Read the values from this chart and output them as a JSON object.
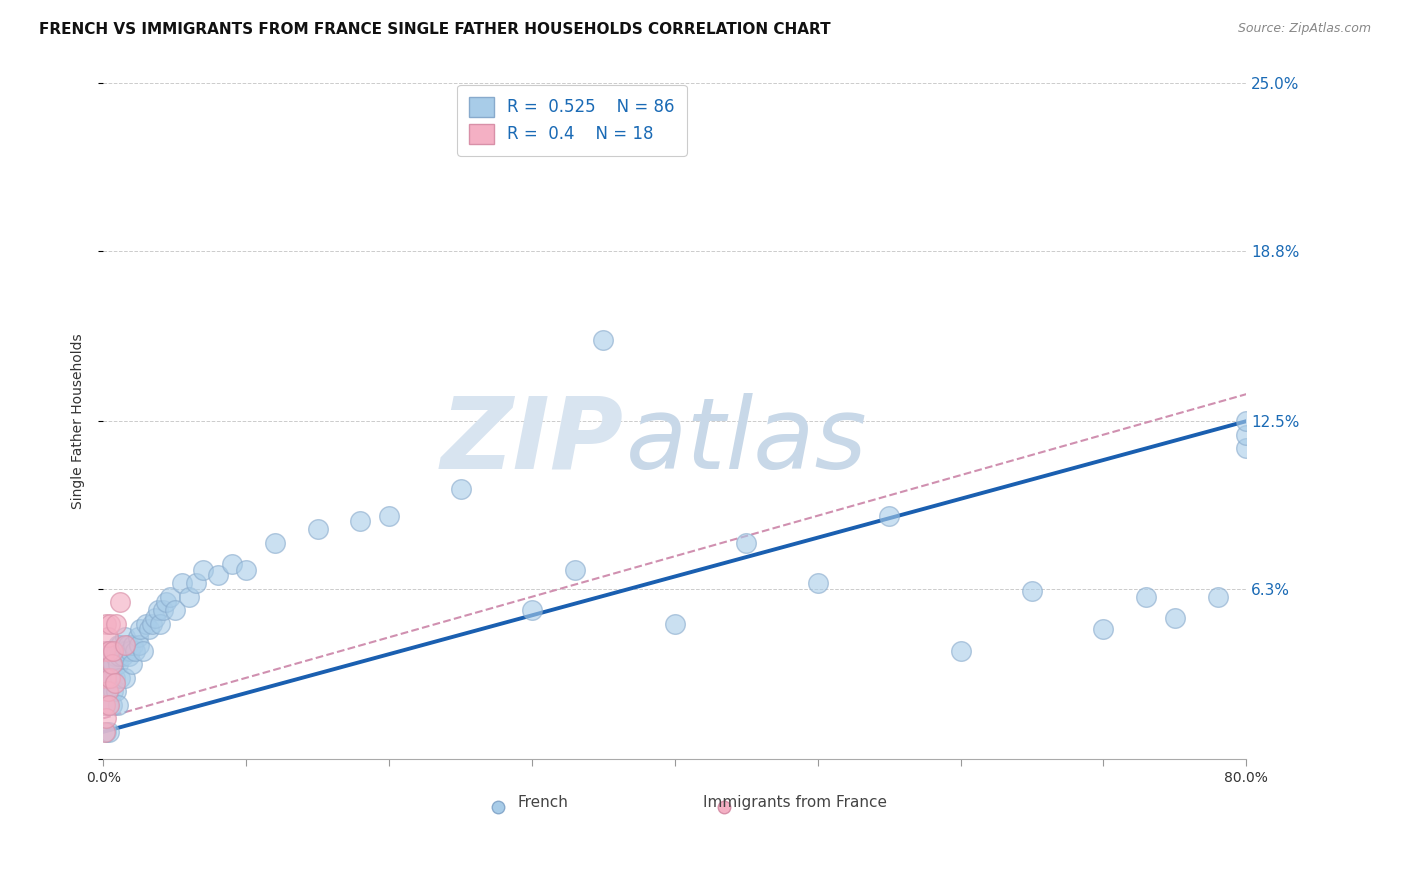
{
  "title": "FRENCH VS IMMIGRANTS FROM FRANCE SINGLE FATHER HOUSEHOLDS CORRELATION CHART",
  "source": "Source: ZipAtlas.com",
  "ylabel": "Single Father Households",
  "xlim": [
    0.0,
    0.8
  ],
  "ylim": [
    0.0,
    0.25
  ],
  "ytick_positions": [
    0.0,
    0.063,
    0.125,
    0.188,
    0.25
  ],
  "ytick_labels": [
    "",
    "6.3%",
    "12.5%",
    "18.8%",
    "25.0%"
  ],
  "xtick_positions": [
    0.0,
    0.1,
    0.2,
    0.3,
    0.4,
    0.5,
    0.6,
    0.7,
    0.8
  ],
  "xtick_labels": [
    "0.0%",
    "",
    "",
    "",
    "",
    "",
    "",
    "",
    "80.0%"
  ],
  "blue_fill": "#a8cce8",
  "blue_edge": "#88aacc",
  "pink_fill": "#f4b0c4",
  "pink_edge": "#d890a8",
  "blue_line": "#1a5fb0",
  "pink_line": "#d090b0",
  "axis_label_color": "#1a6ab5",
  "watermark_zip_color": "#d8e4f0",
  "watermark_atlas_color": "#c8d8e8",
  "grid_color": "#cccccc",
  "R_blue": 0.525,
  "N_blue": 86,
  "R_pink": 0.4,
  "N_pink": 18,
  "title_fontsize": 11,
  "label_fontsize": 10,
  "tick_fontsize": 10,
  "legend_fontsize": 12,
  "source_fontsize": 9,
  "blue_x": [
    0.001,
    0.001,
    0.002,
    0.002,
    0.002,
    0.002,
    0.003,
    0.003,
    0.003,
    0.003,
    0.004,
    0.004,
    0.004,
    0.004,
    0.005,
    0.005,
    0.005,
    0.006,
    0.006,
    0.006,
    0.007,
    0.007,
    0.007,
    0.008,
    0.008,
    0.009,
    0.009,
    0.01,
    0.01,
    0.01,
    0.011,
    0.012,
    0.012,
    0.013,
    0.014,
    0.015,
    0.015,
    0.016,
    0.017,
    0.018,
    0.019,
    0.02,
    0.021,
    0.022,
    0.024,
    0.025,
    0.026,
    0.028,
    0.03,
    0.032,
    0.034,
    0.036,
    0.038,
    0.04,
    0.042,
    0.044,
    0.047,
    0.05,
    0.055,
    0.06,
    0.065,
    0.07,
    0.08,
    0.09,
    0.1,
    0.12,
    0.15,
    0.18,
    0.2,
    0.25,
    0.3,
    0.33,
    0.35,
    0.4,
    0.45,
    0.5,
    0.55,
    0.6,
    0.65,
    0.7,
    0.73,
    0.75,
    0.78,
    0.8,
    0.8,
    0.8
  ],
  "blue_y": [
    0.02,
    0.03,
    0.01,
    0.025,
    0.035,
    0.04,
    0.02,
    0.03,
    0.035,
    0.04,
    0.01,
    0.025,
    0.035,
    0.04,
    0.03,
    0.035,
    0.04,
    0.02,
    0.03,
    0.04,
    0.025,
    0.035,
    0.04,
    0.03,
    0.038,
    0.025,
    0.04,
    0.02,
    0.035,
    0.042,
    0.038,
    0.03,
    0.042,
    0.04,
    0.038,
    0.03,
    0.045,
    0.04,
    0.042,
    0.038,
    0.04,
    0.035,
    0.042,
    0.04,
    0.045,
    0.042,
    0.048,
    0.04,
    0.05,
    0.048,
    0.05,
    0.052,
    0.055,
    0.05,
    0.055,
    0.058,
    0.06,
    0.055,
    0.065,
    0.06,
    0.065,
    0.07,
    0.068,
    0.072,
    0.07,
    0.08,
    0.085,
    0.088,
    0.09,
    0.1,
    0.055,
    0.07,
    0.155,
    0.05,
    0.08,
    0.065,
    0.09,
    0.04,
    0.062,
    0.048,
    0.06,
    0.052,
    0.06,
    0.115,
    0.12,
    0.125
  ],
  "pink_x": [
    0.001,
    0.001,
    0.001,
    0.002,
    0.002,
    0.002,
    0.003,
    0.003,
    0.004,
    0.004,
    0.005,
    0.005,
    0.006,
    0.007,
    0.008,
    0.009,
    0.012,
    0.015
  ],
  "pink_y": [
    0.01,
    0.02,
    0.04,
    0.015,
    0.03,
    0.05,
    0.025,
    0.045,
    0.02,
    0.04,
    0.03,
    0.05,
    0.035,
    0.04,
    0.028,
    0.05,
    0.058,
    0.042
  ]
}
